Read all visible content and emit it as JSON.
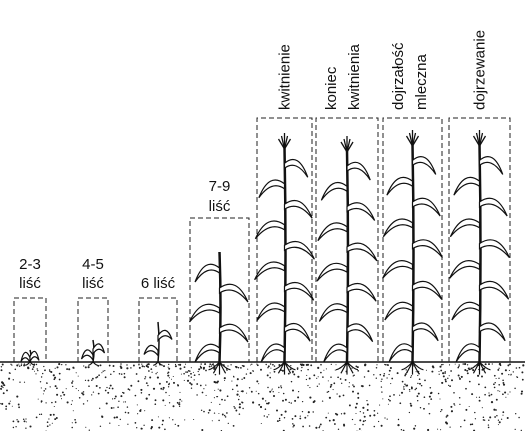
{
  "stages": [
    {
      "lines": [
        "2-3",
        "liść"
      ]
    },
    {
      "lines": [
        "4-5",
        "liść"
      ]
    },
    {
      "lines": [
        "6 liść"
      ]
    },
    {
      "lines": [
        "7-9",
        "liść"
      ]
    },
    {
      "lines": [
        "kwitnienie"
      ]
    },
    {
      "lines": [
        "koniec",
        "kwitnienia"
      ]
    },
    {
      "lines": [
        "dojrzałość",
        "mleczna"
      ]
    },
    {
      "lines": [
        "dojrzewanie"
      ]
    }
  ]
}
